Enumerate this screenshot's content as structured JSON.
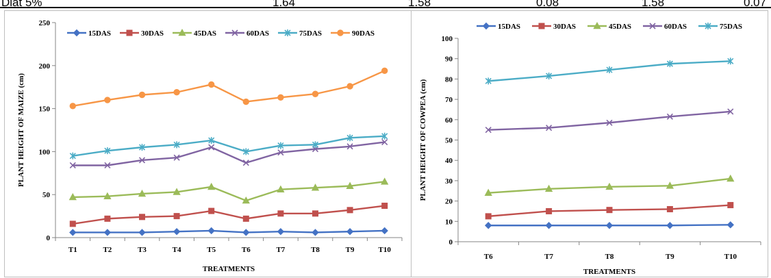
{
  "table_row": {
    "label": "Dlat 5%",
    "cells": [
      "1.64",
      "1.58",
      "0.08",
      "1.58",
      "0.07"
    ]
  },
  "chart_data": [
    {
      "type": "line",
      "title": "",
      "xlabel": "TREATMENTS",
      "ylabel": "PLANT HEIGHT OF MAIZE  (cm)",
      "categories": [
        "T1",
        "T2",
        "T3",
        "T4",
        "T5",
        "T6",
        "T7",
        "T8",
        "T9",
        "T10"
      ],
      "ylim": [
        0,
        250
      ],
      "yticks": [
        0,
        50,
        100,
        150,
        200,
        250
      ],
      "grid": false,
      "legend_position": "top",
      "series": [
        {
          "name": "15DAS",
          "color": "#4472C4",
          "marker": "diamond",
          "values": [
            6,
            6,
            6,
            7,
            8,
            6,
            7,
            6,
            7,
            8
          ]
        },
        {
          "name": "30DAS",
          "color": "#C0504D",
          "marker": "square",
          "values": [
            16,
            22,
            24,
            25,
            31,
            22,
            28,
            28,
            32,
            37
          ]
        },
        {
          "name": "45DAS",
          "color": "#9BBB59",
          "marker": "triangle",
          "values": [
            47,
            48,
            51,
            53,
            59,
            43,
            56,
            58,
            60,
            65
          ]
        },
        {
          "name": "60DAS",
          "color": "#8064A2",
          "marker": "x",
          "values": [
            84,
            84,
            90,
            93,
            105,
            87,
            99,
            103,
            106,
            111
          ]
        },
        {
          "name": "75DAS",
          "color": "#4BACC6",
          "marker": "star",
          "values": [
            95,
            101,
            105,
            108,
            113,
            100,
            107,
            108,
            116,
            118
          ]
        },
        {
          "name": "90DAS",
          "color": "#F79646",
          "marker": "circle",
          "values": [
            153,
            160,
            166,
            169,
            178,
            158,
            163,
            167,
            176,
            194
          ]
        }
      ]
    },
    {
      "type": "line",
      "title": "",
      "xlabel": "TREATMENTS",
      "ylabel": "PLANT HEIGHT OF COWPEA  (cm)",
      "categories": [
        "T6",
        "T7",
        "T8",
        "T9",
        "T10"
      ],
      "ylim": [
        0,
        100
      ],
      "yticks": [
        0,
        10,
        20,
        30,
        40,
        50,
        60,
        70,
        80,
        90,
        100
      ],
      "grid": false,
      "legend_position": "top",
      "series": [
        {
          "name": "15DAS",
          "color": "#4472C4",
          "marker": "diamond",
          "values": [
            8,
            8,
            8,
            8,
            8.3
          ]
        },
        {
          "name": "30DAS",
          "color": "#C0504D",
          "marker": "square",
          "values": [
            12.5,
            15,
            15.6,
            16,
            18
          ]
        },
        {
          "name": "45DAS",
          "color": "#9BBB59",
          "marker": "triangle",
          "values": [
            24,
            26,
            27,
            27.5,
            31
          ]
        },
        {
          "name": "60DAS",
          "color": "#8064A2",
          "marker": "x",
          "values": [
            55,
            56,
            58.5,
            61.5,
            64
          ]
        },
        {
          "name": "75DAS",
          "color": "#4BACC6",
          "marker": "star",
          "values": [
            79,
            81.5,
            84.5,
            87.5,
            88.8
          ]
        }
      ]
    }
  ]
}
